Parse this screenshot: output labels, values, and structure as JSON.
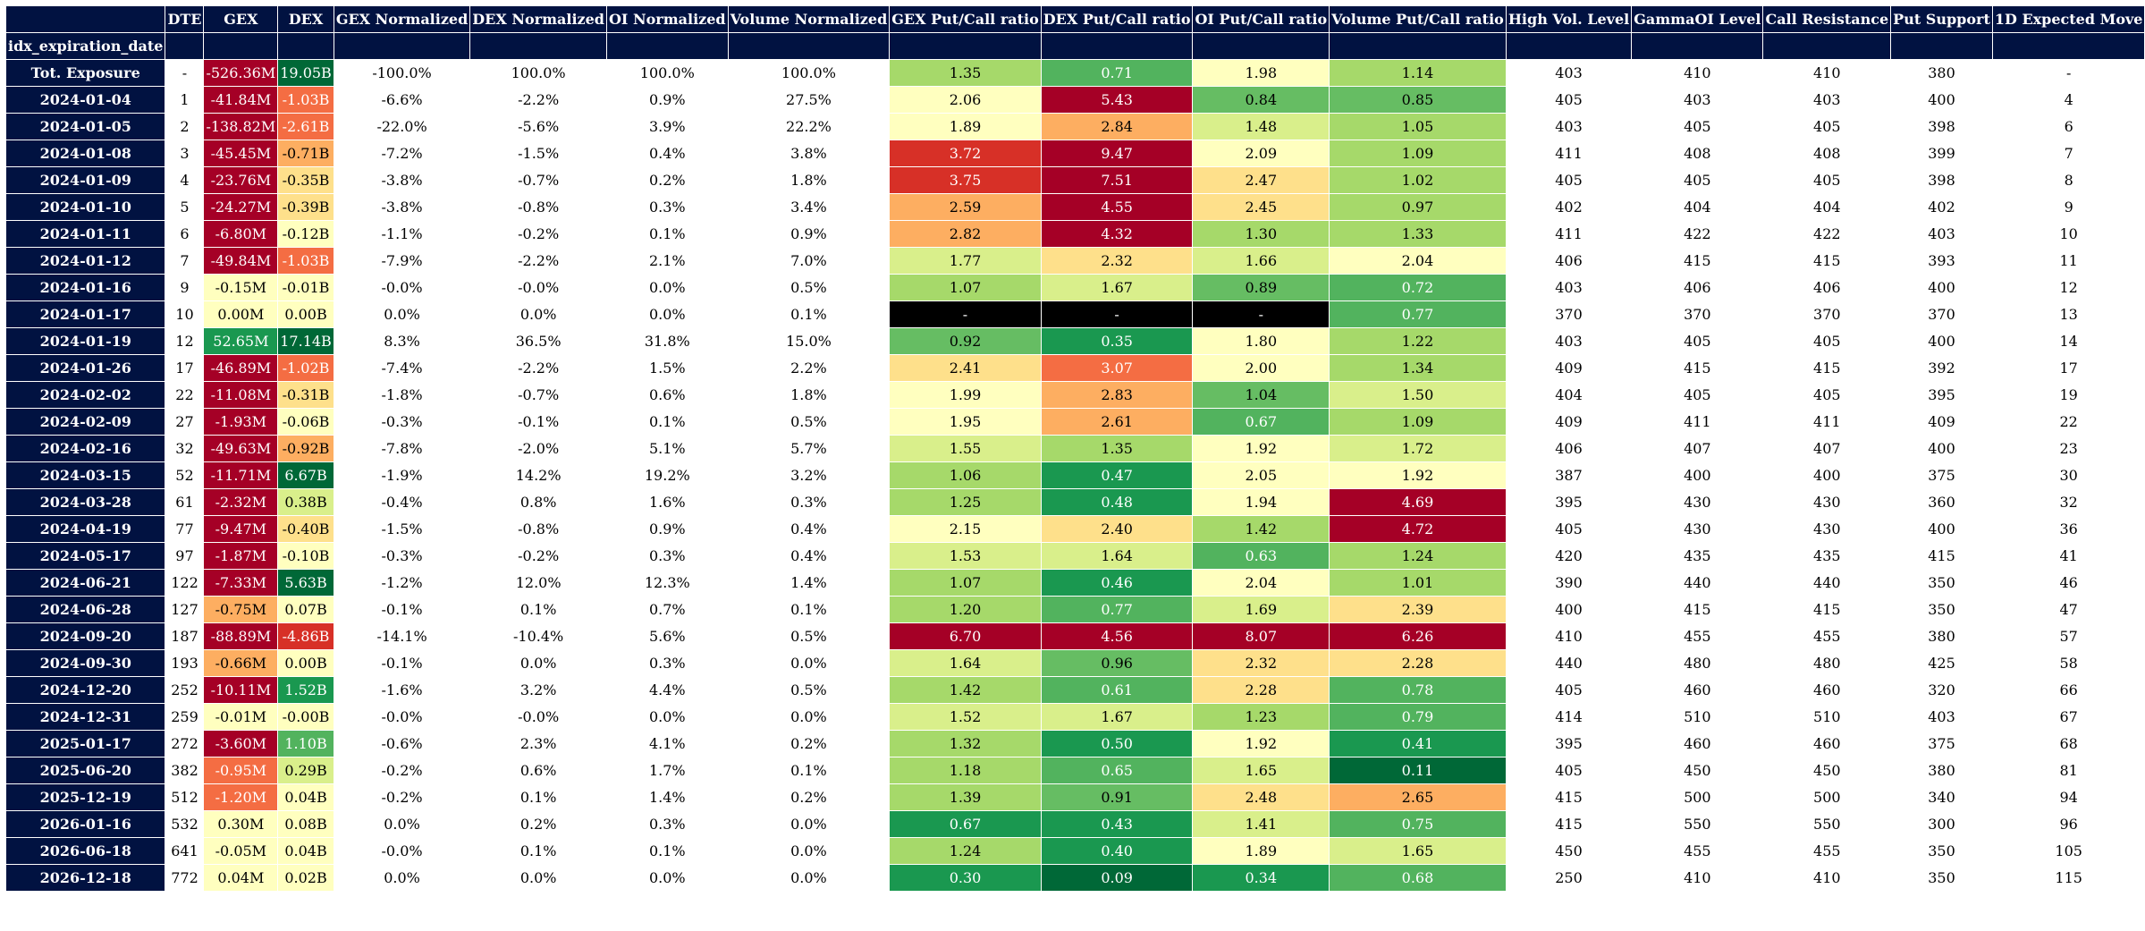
{
  "table": {
    "index_name": "idx_expiration_date",
    "columns": [
      "DTE",
      "GEX",
      "DEX",
      "GEX Normalized",
      "DEX Normalized",
      "OI Normalized",
      "Volume Normalized",
      "GEX Put/Call ratio",
      "DEX Put/Call ratio",
      "OI Put/Call ratio",
      "Volume Put/Call ratio",
      "High Vol. Level",
      "GammaOI Level",
      "Call Resistance",
      "Put Support",
      "1D Expected Move"
    ],
    "rows": [
      [
        "Tot. Exposure",
        "-",
        "-526.36M",
        "19.05B",
        "-100.0%",
        "100.0%",
        "100.0%",
        "100.0%",
        "1.35",
        "0.71",
        "1.98",
        "1.14",
        "403",
        "410",
        "410",
        "380",
        "-"
      ],
      [
        "2024-01-04",
        "1",
        "-41.84M",
        "-1.03B",
        "-6.6%",
        "-2.2%",
        "0.9%",
        "27.5%",
        "2.06",
        "5.43",
        "0.84",
        "0.85",
        "405",
        "403",
        "403",
        "400",
        "4"
      ],
      [
        "2024-01-05",
        "2",
        "-138.82M",
        "-2.61B",
        "-22.0%",
        "-5.6%",
        "3.9%",
        "22.2%",
        "1.89",
        "2.84",
        "1.48",
        "1.05",
        "403",
        "405",
        "405",
        "398",
        "6"
      ],
      [
        "2024-01-08",
        "3",
        "-45.45M",
        "-0.71B",
        "-7.2%",
        "-1.5%",
        "0.4%",
        "3.8%",
        "3.72",
        "9.47",
        "2.09",
        "1.09",
        "411",
        "408",
        "408",
        "399",
        "7"
      ],
      [
        "2024-01-09",
        "4",
        "-23.76M",
        "-0.35B",
        "-3.8%",
        "-0.7%",
        "0.2%",
        "1.8%",
        "3.75",
        "7.51",
        "2.47",
        "1.02",
        "405",
        "405",
        "405",
        "398",
        "8"
      ],
      [
        "2024-01-10",
        "5",
        "-24.27M",
        "-0.39B",
        "-3.8%",
        "-0.8%",
        "0.3%",
        "3.4%",
        "2.59",
        "4.55",
        "2.45",
        "0.97",
        "402",
        "404",
        "404",
        "402",
        "9"
      ],
      [
        "2024-01-11",
        "6",
        "-6.80M",
        "-0.12B",
        "-1.1%",
        "-0.2%",
        "0.1%",
        "0.9%",
        "2.82",
        "4.32",
        "1.30",
        "1.33",
        "411",
        "422",
        "422",
        "403",
        "10"
      ],
      [
        "2024-01-12",
        "7",
        "-49.84M",
        "-1.03B",
        "-7.9%",
        "-2.2%",
        "2.1%",
        "7.0%",
        "1.77",
        "2.32",
        "1.66",
        "2.04",
        "406",
        "415",
        "415",
        "393",
        "11"
      ],
      [
        "2024-01-16",
        "9",
        "-0.15M",
        "-0.01B",
        "-0.0%",
        "-0.0%",
        "0.0%",
        "0.5%",
        "1.07",
        "1.67",
        "0.89",
        "0.72",
        "403",
        "406",
        "406",
        "400",
        "12"
      ],
      [
        "2024-01-17",
        "10",
        "0.00M",
        "0.00B",
        "0.0%",
        "0.0%",
        "0.0%",
        "0.1%",
        "-",
        "-",
        "-",
        "0.77",
        "370",
        "370",
        "370",
        "370",
        "13"
      ],
      [
        "2024-01-19",
        "12",
        "52.65M",
        "17.14B",
        "8.3%",
        "36.5%",
        "31.8%",
        "15.0%",
        "0.92",
        "0.35",
        "1.80",
        "1.22",
        "403",
        "405",
        "405",
        "400",
        "14"
      ],
      [
        "2024-01-26",
        "17",
        "-46.89M",
        "-1.02B",
        "-7.4%",
        "-2.2%",
        "1.5%",
        "2.2%",
        "2.41",
        "3.07",
        "2.00",
        "1.34",
        "409",
        "415",
        "415",
        "392",
        "17"
      ],
      [
        "2024-02-02",
        "22",
        "-11.08M",
        "-0.31B",
        "-1.8%",
        "-0.7%",
        "0.6%",
        "1.8%",
        "1.99",
        "2.83",
        "1.04",
        "1.50",
        "404",
        "405",
        "405",
        "395",
        "19"
      ],
      [
        "2024-02-09",
        "27",
        "-1.93M",
        "-0.06B",
        "-0.3%",
        "-0.1%",
        "0.1%",
        "0.5%",
        "1.95",
        "2.61",
        "0.67",
        "1.09",
        "409",
        "411",
        "411",
        "409",
        "22"
      ],
      [
        "2024-02-16",
        "32",
        "-49.63M",
        "-0.92B",
        "-7.8%",
        "-2.0%",
        "5.1%",
        "5.7%",
        "1.55",
        "1.35",
        "1.92",
        "1.72",
        "406",
        "407",
        "407",
        "400",
        "23"
      ],
      [
        "2024-03-15",
        "52",
        "-11.71M",
        "6.67B",
        "-1.9%",
        "14.2%",
        "19.2%",
        "3.2%",
        "1.06",
        "0.47",
        "2.05",
        "1.92",
        "387",
        "400",
        "400",
        "375",
        "30"
      ],
      [
        "2024-03-28",
        "61",
        "-2.32M",
        "0.38B",
        "-0.4%",
        "0.8%",
        "1.6%",
        "0.3%",
        "1.25",
        "0.48",
        "1.94",
        "4.69",
        "395",
        "430",
        "430",
        "360",
        "32"
      ],
      [
        "2024-04-19",
        "77",
        "-9.47M",
        "-0.40B",
        "-1.5%",
        "-0.8%",
        "0.9%",
        "0.4%",
        "2.15",
        "2.40",
        "1.42",
        "4.72",
        "405",
        "430",
        "430",
        "400",
        "36"
      ],
      [
        "2024-05-17",
        "97",
        "-1.87M",
        "-0.10B",
        "-0.3%",
        "-0.2%",
        "0.3%",
        "0.4%",
        "1.53",
        "1.64",
        "0.63",
        "1.24",
        "420",
        "435",
        "435",
        "415",
        "41"
      ],
      [
        "2024-06-21",
        "122",
        "-7.33M",
        "5.63B",
        "-1.2%",
        "12.0%",
        "12.3%",
        "1.4%",
        "1.07",
        "0.46",
        "2.04",
        "1.01",
        "390",
        "440",
        "440",
        "350",
        "46"
      ],
      [
        "2024-06-28",
        "127",
        "-0.75M",
        "0.07B",
        "-0.1%",
        "0.1%",
        "0.7%",
        "0.1%",
        "1.20",
        "0.77",
        "1.69",
        "2.39",
        "400",
        "415",
        "415",
        "350",
        "47"
      ],
      [
        "2024-09-20",
        "187",
        "-88.89M",
        "-4.86B",
        "-14.1%",
        "-10.4%",
        "5.6%",
        "0.5%",
        "6.70",
        "4.56",
        "8.07",
        "6.26",
        "410",
        "455",
        "455",
        "380",
        "57"
      ],
      [
        "2024-09-30",
        "193",
        "-0.66M",
        "0.00B",
        "-0.1%",
        "0.0%",
        "0.3%",
        "0.0%",
        "1.64",
        "0.96",
        "2.32",
        "2.28",
        "440",
        "480",
        "480",
        "425",
        "58"
      ],
      [
        "2024-12-20",
        "252",
        "-10.11M",
        "1.52B",
        "-1.6%",
        "3.2%",
        "4.4%",
        "0.5%",
        "1.42",
        "0.61",
        "2.28",
        "0.78",
        "405",
        "460",
        "460",
        "320",
        "66"
      ],
      [
        "2024-12-31",
        "259",
        "-0.01M",
        "-0.00B",
        "-0.0%",
        "-0.0%",
        "0.0%",
        "0.0%",
        "1.52",
        "1.67",
        "1.23",
        "0.79",
        "414",
        "510",
        "510",
        "403",
        "67"
      ],
      [
        "2025-01-17",
        "272",
        "-3.60M",
        "1.10B",
        "-0.6%",
        "2.3%",
        "4.1%",
        "0.2%",
        "1.32",
        "0.50",
        "1.92",
        "0.41",
        "395",
        "460",
        "460",
        "375",
        "68"
      ],
      [
        "2025-06-20",
        "382",
        "-0.95M",
        "0.29B",
        "-0.2%",
        "0.6%",
        "1.7%",
        "0.1%",
        "1.18",
        "0.65",
        "1.65",
        "0.11",
        "405",
        "450",
        "450",
        "380",
        "81"
      ],
      [
        "2025-12-19",
        "512",
        "-1.20M",
        "0.04B",
        "-0.2%",
        "0.1%",
        "1.4%",
        "0.2%",
        "1.39",
        "0.91",
        "2.48",
        "2.65",
        "415",
        "500",
        "500",
        "340",
        "94"
      ],
      [
        "2026-01-16",
        "532",
        "0.30M",
        "0.08B",
        "0.0%",
        "0.2%",
        "0.3%",
        "0.0%",
        "0.67",
        "0.43",
        "1.41",
        "0.75",
        "415",
        "550",
        "550",
        "300",
        "96"
      ],
      [
        "2026-06-18",
        "641",
        "-0.05M",
        "0.04B",
        "-0.0%",
        "0.1%",
        "0.1%",
        "0.0%",
        "1.24",
        "0.40",
        "1.89",
        "1.65",
        "450",
        "455",
        "455",
        "350",
        "105"
      ],
      [
        "2026-12-18",
        "772",
        "0.04M",
        "0.02B",
        "0.0%",
        "0.0%",
        "0.0%",
        "0.0%",
        "0.30",
        "0.09",
        "0.34",
        "0.68",
        "250",
        "410",
        "410",
        "350",
        "115"
      ]
    ],
    "cell_colors": {
      "2": [
        "#a50026",
        "#a50026",
        "#a50026",
        "#a50026",
        "#a50026",
        "#a50026",
        "#a50026",
        "#a50026",
        "#ffffbf",
        "#ffffbf",
        "#1a9850",
        "#a50026",
        "#a50026",
        "#a50026",
        "#a50026",
        "#a50026",
        "#a50026",
        "#a50026",
        "#a50026",
        "#a50026",
        "#fdae61",
        "#a50026",
        "#fdae61",
        "#a50026",
        "#ffffbf",
        "#a50026",
        "#f46d43",
        "#f46d43",
        "#ffffbf",
        "#ffffbf",
        "#ffffbf"
      ],
      "3": [
        "#006837",
        "#f46d43",
        "#f46d43",
        "#fdae61",
        "#fee08b",
        "#fee08b",
        "#ffffbf",
        "#f46d43",
        "#ffffbf",
        "#ffffbf",
        "#006837",
        "#f46d43",
        "#fee08b",
        "#ffffbf",
        "#fdae61",
        "#006837",
        "#d9ef8b",
        "#fee08b",
        "#ffffbf",
        "#006837",
        "#ffffbf",
        "#d73027",
        "#ffffbf",
        "#1a9850",
        "#ffffbf",
        "#52b35e",
        "#d9ef8b",
        "#ffffbf",
        "#ffffbf",
        "#ffffbf",
        "#ffffbf"
      ],
      "8": [
        "#a6d96a",
        "#ffffbf",
        "#ffffbf",
        "#d73027",
        "#d73027",
        "#fdae61",
        "#fdae61",
        "#d9ef8b",
        "#a6d96a",
        "#000000",
        "#66bd63",
        "#fee08b",
        "#ffffbf",
        "#ffffbf",
        "#d9ef8b",
        "#a6d96a",
        "#a6d96a",
        "#ffffbf",
        "#d9ef8b",
        "#a6d96a",
        "#a6d96a",
        "#a50026",
        "#d9ef8b",
        "#a6d96a",
        "#d9ef8b",
        "#a6d96a",
        "#a6d96a",
        "#a6d96a",
        "#1a9850",
        "#a6d96a",
        "#1a9850"
      ],
      "9": [
        "#52b35e",
        "#a50026",
        "#fdae61",
        "#a50026",
        "#a50026",
        "#a50026",
        "#a50026",
        "#fee08b",
        "#d9ef8b",
        "#000000",
        "#1a9850",
        "#f46d43",
        "#fdae61",
        "#fdae61",
        "#a6d96a",
        "#1a9850",
        "#1a9850",
        "#fee08b",
        "#d9ef8b",
        "#1a9850",
        "#52b35e",
        "#a50026",
        "#66bd63",
        "#52b35e",
        "#d9ef8b",
        "#1a9850",
        "#52b35e",
        "#66bd63",
        "#1a9850",
        "#1a9850",
        "#006837"
      ],
      "10": [
        "#ffffbf",
        "#66bd63",
        "#d9ef8b",
        "#ffffbf",
        "#fee08b",
        "#fee08b",
        "#a6d96a",
        "#d9ef8b",
        "#66bd63",
        "#000000",
        "#ffffbf",
        "#ffffbf",
        "#66bd63",
        "#52b35e",
        "#ffffbf",
        "#ffffbf",
        "#ffffbf",
        "#a6d96a",
        "#52b35e",
        "#ffffbf",
        "#d9ef8b",
        "#a50026",
        "#fee08b",
        "#fee08b",
        "#a6d96a",
        "#ffffbf",
        "#d9ef8b",
        "#fee08b",
        "#d9ef8b",
        "#ffffbf",
        "#1a9850"
      ],
      "11": [
        "#a6d96a",
        "#66bd63",
        "#a6d96a",
        "#a6d96a",
        "#a6d96a",
        "#a6d96a",
        "#a6d96a",
        "#ffffbf",
        "#52b35e",
        "#52b35e",
        "#a6d96a",
        "#a6d96a",
        "#d9ef8b",
        "#a6d96a",
        "#d9ef8b",
        "#ffffbf",
        "#a50026",
        "#a50026",
        "#a6d96a",
        "#a6d96a",
        "#fee08b",
        "#a50026",
        "#fee08b",
        "#52b35e",
        "#52b35e",
        "#1a9850",
        "#006837",
        "#fdae61",
        "#52b35e",
        "#d9ef8b",
        "#52b35e"
      ]
    },
    "bars": {
      "4": {
        "align": "mid",
        "negative_color": "#d9605e",
        "positive_color": "#5fba7d"
      },
      "5": {
        "align": "mid",
        "negative_color": "#d9605e",
        "positive_color": "#5fba7d"
      },
      "6": {
        "align": "left",
        "negative_color": "#d9605e",
        "positive_color": "#5fba7d"
      },
      "7": {
        "align": "left",
        "negative_color": "#d9605e",
        "positive_color": "#5fba7d"
      }
    }
  }
}
